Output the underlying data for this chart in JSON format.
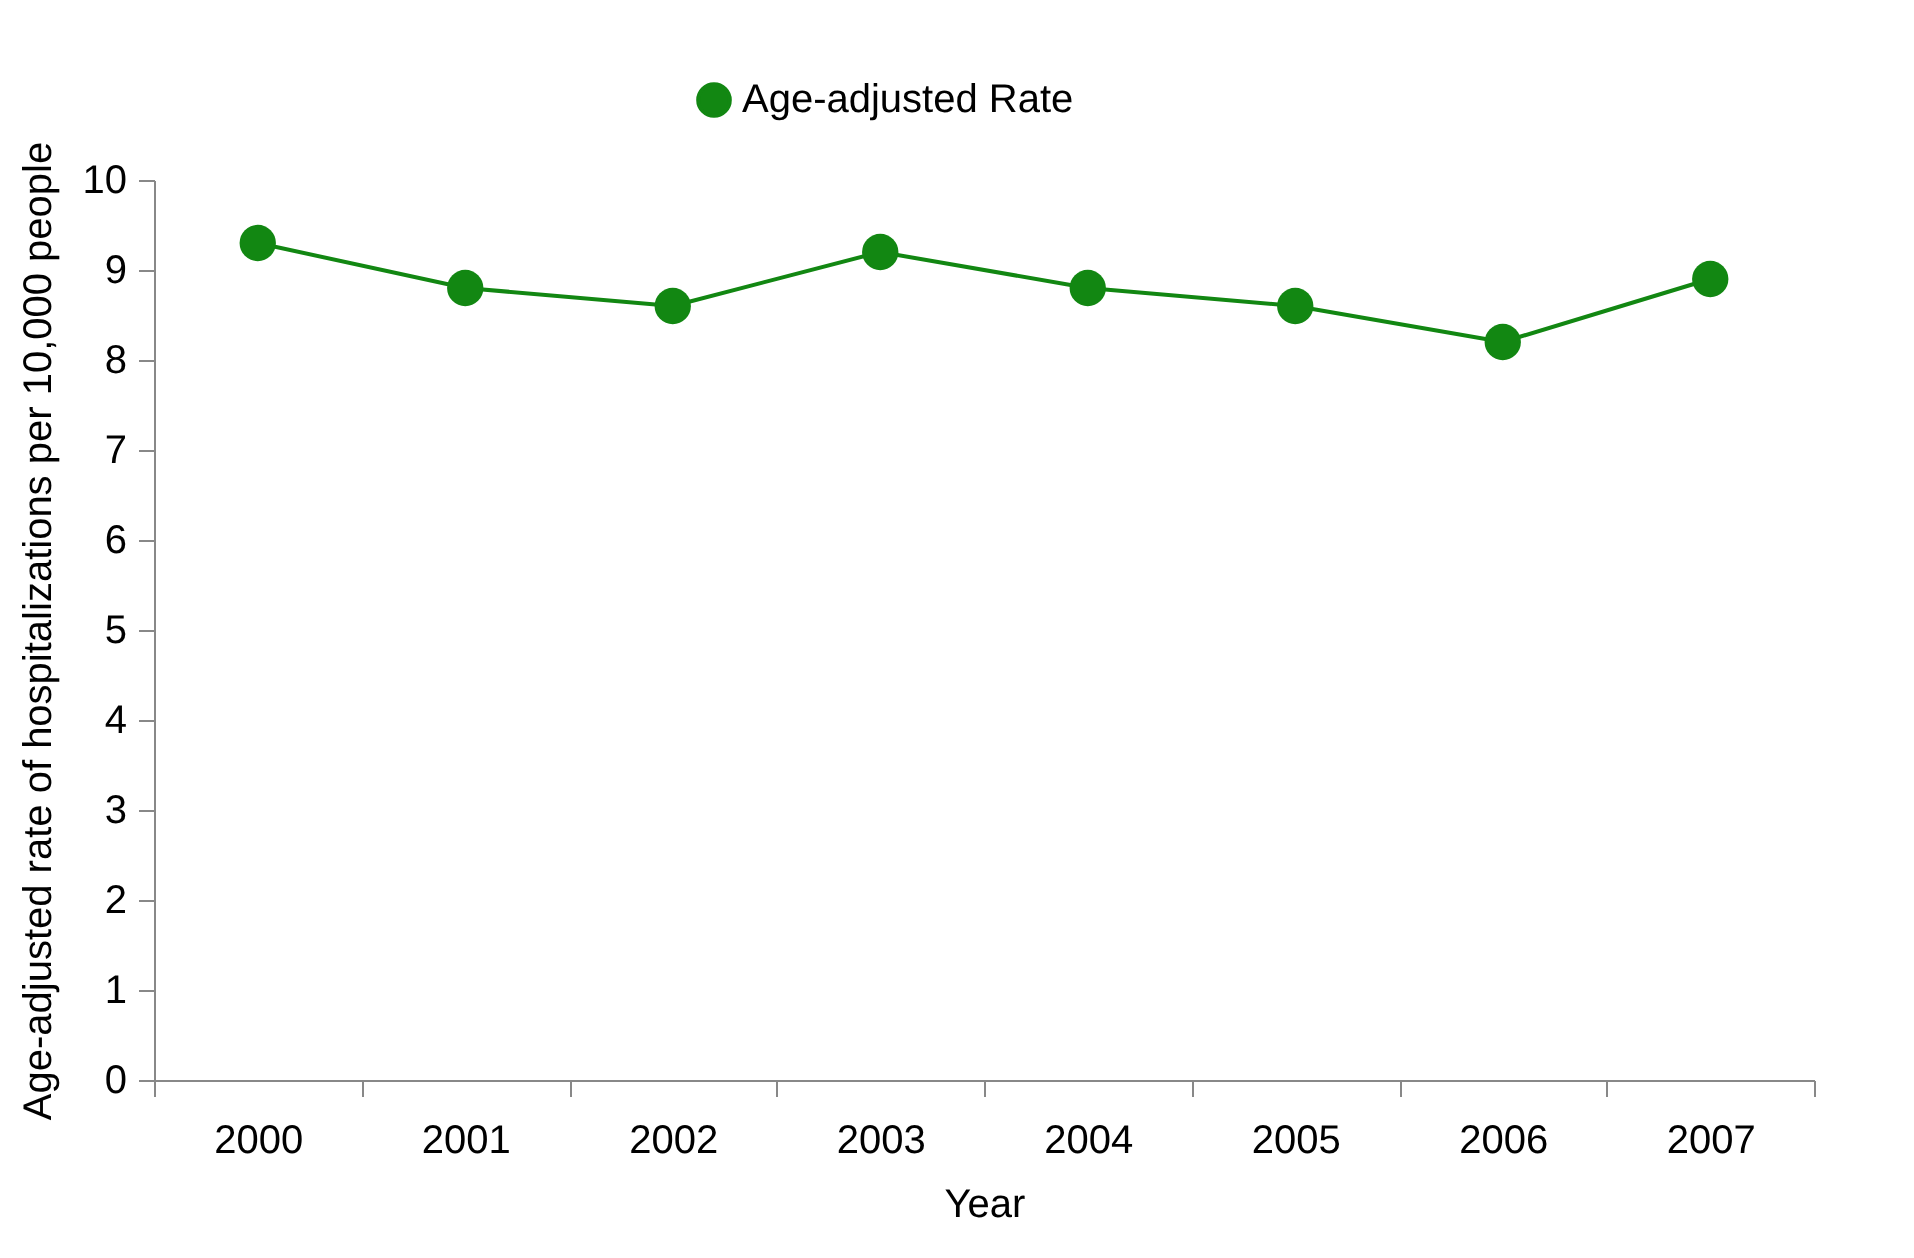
{
  "chart_data": {
    "type": "line",
    "xlabel": "Year",
    "ylabel": "Age-adjusted rate of hospitalizations per 10,000 people",
    "categories": [
      "2000",
      "2001",
      "2002",
      "2003",
      "2004",
      "2005",
      "2006",
      "2007"
    ],
    "series": [
      {
        "name": "Age-adjusted Rate",
        "color": "#128712",
        "values": [
          9.3,
          8.8,
          8.6,
          9.2,
          8.8,
          8.6,
          8.2,
          8.9
        ]
      }
    ],
    "ylim": [
      0,
      10
    ],
    "yticks": [
      0,
      1,
      2,
      3,
      4,
      5,
      6,
      7,
      8,
      9,
      10
    ],
    "grid": false,
    "legend": "top",
    "marker": "circle",
    "line_style": "solid"
  }
}
